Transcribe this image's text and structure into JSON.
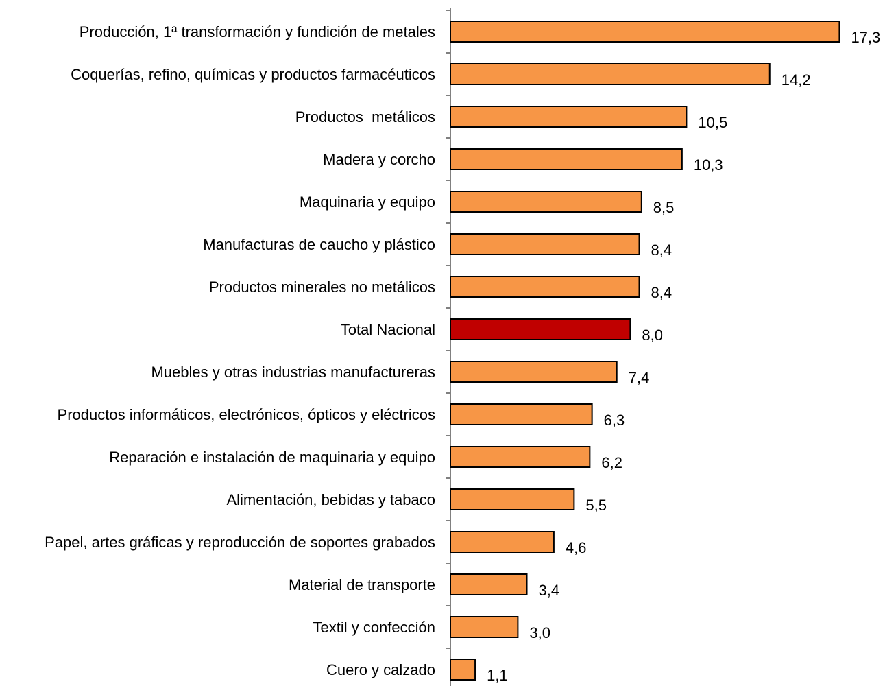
{
  "chart_data": {
    "type": "bar",
    "orientation": "horizontal",
    "categories": [
      "Producción, 1ª transformación y fundición de metales",
      "Coquerías, refino, químicas y productos farmacéuticos",
      "Productos  metálicos",
      "Madera y corcho",
      "Maquinaria y equipo",
      "Manufacturas de caucho y plástico",
      "Productos minerales no metálicos",
      "Total Nacional",
      "Muebles y otras industrias manufactureras",
      "Productos informáticos, electrónicos, ópticos y eléctricos",
      "Reparación e instalación de maquinaria y equipo",
      "Alimentación, bebidas y tabaco",
      "Papel, artes gráficas y reproducción de soportes grabados",
      "Material de transporte",
      "Textil y confección",
      "Cuero y calzado"
    ],
    "values": [
      17.3,
      14.2,
      10.5,
      10.3,
      8.5,
      8.4,
      8.4,
      8.0,
      7.4,
      6.3,
      6.2,
      5.5,
      4.6,
      3.4,
      3.0,
      1.1
    ],
    "value_labels": [
      "17,3",
      "14,2",
      "10,5",
      "10,3",
      "8,5",
      "8,4",
      "8,4",
      "8,0",
      "7,4",
      "6,3",
      "6,2",
      "5,5",
      "4,6",
      "3,4",
      "3,0",
      "1,1"
    ],
    "highlight_category": "Total Nacional",
    "colors": {
      "bar": "#F79646",
      "highlight": "#C00000",
      "stroke": "#000000"
    },
    "title": "",
    "xlabel": "",
    "ylabel": "",
    "xlim": [
      0,
      18
    ],
    "grid": false,
    "legend": "none"
  }
}
